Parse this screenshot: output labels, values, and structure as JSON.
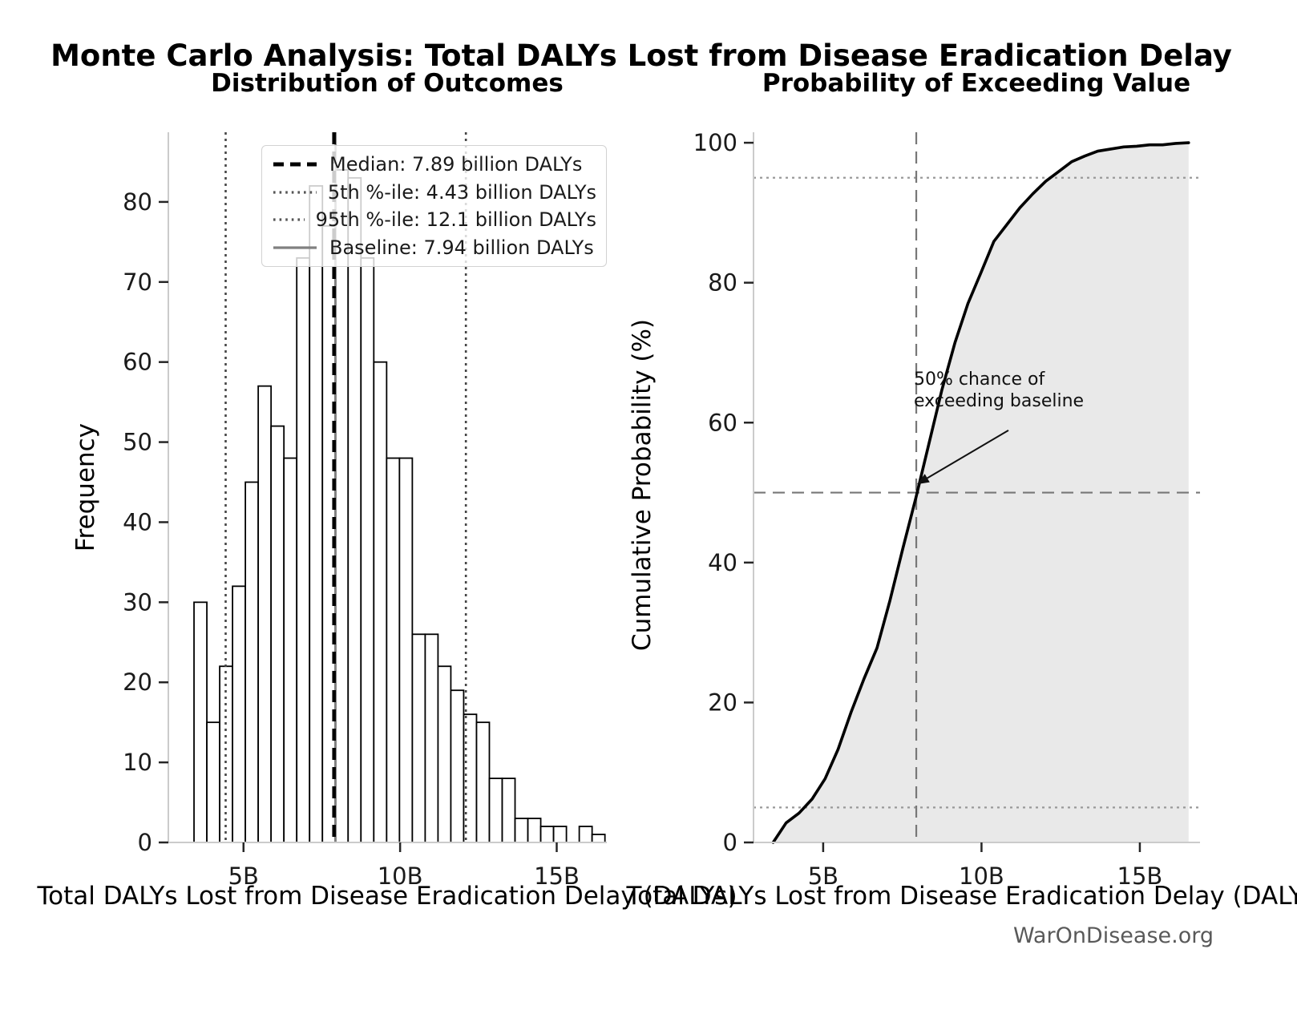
{
  "figure": {
    "title": "Monte Carlo Analysis: Total DALYs Lost from Disease Eradication Delay",
    "watermark": "WarOnDisease.org"
  },
  "chart_data": [
    {
      "type": "bar",
      "title": "Distribution of Outcomes",
      "xlabel": "Total DALYs Lost from Disease Eradication Delay (DALYs)",
      "ylabel": "Frequency",
      "xlim": [
        2.6,
        16.6
      ],
      "ylim": [
        0,
        88.7
      ],
      "grid": false,
      "xticks": {
        "values": [
          5,
          10,
          15
        ],
        "labels": [
          "5B",
          "10B",
          "15B"
        ]
      },
      "yticks": {
        "values": [
          0,
          10,
          20,
          30,
          40,
          50,
          60,
          70,
          80
        ],
        "labels": [
          "0",
          "10",
          "20",
          "30",
          "40",
          "50",
          "60",
          "70",
          "80"
        ]
      },
      "bins": {
        "start": 3.42,
        "width": 0.41,
        "unit": "billion DALYs"
      },
      "frequencies": [
        30,
        15,
        22,
        32,
        45,
        57,
        52,
        48,
        73,
        82,
        77,
        84,
        83,
        73,
        60,
        48,
        48,
        26,
        26,
        22,
        19,
        16,
        15,
        8,
        8,
        3,
        3,
        2,
        2,
        0,
        2,
        1
      ],
      "bar_fill": "#ffffff",
      "bar_edge": "#000000",
      "ref_lines": [
        {
          "name": "baseline",
          "x": 7.94,
          "style": "solid",
          "color": "#808080",
          "width": 2.6
        },
        {
          "name": "p5",
          "x": 4.43,
          "style": "dotted",
          "color": "#454545",
          "width": 2.6
        },
        {
          "name": "p95",
          "x": 12.1,
          "style": "dotted",
          "color": "#454545",
          "width": 2.6
        },
        {
          "name": "median",
          "x": 7.89,
          "style": "dashed",
          "color": "#000000",
          "width": 4.5
        }
      ],
      "legend": {
        "position": "upper-left",
        "items": [
          {
            "label": "Median: 7.89 billion DALYs",
            "style": "dashed",
            "color": "#000000"
          },
          {
            "label": "5th %-ile: 4.43 billion DALYs",
            "style": "dotted",
            "color": "#555555"
          },
          {
            "label": "95th %-ile: 12.1 billion DALYs",
            "style": "dotted",
            "color": "#555555"
          },
          {
            "label": "Baseline: 7.94 billion DALYs",
            "style": "solid",
            "color": "#808080"
          }
        ]
      },
      "stats": {
        "median": "7.89 billion DALYs",
        "p5": "4.43 billion DALYs",
        "p95": "12.1 billion DALYs",
        "baseline": "7.94 billion DALYs"
      }
    },
    {
      "type": "line",
      "title": "Probability of Exceeding Value",
      "xlabel": "Total DALYs Lost from Disease Eradication Delay (DALYs)",
      "ylabel": "Cumulative Probability (%)",
      "xlim": [
        2.8,
        16.9
      ],
      "ylim": [
        0,
        101.5
      ],
      "grid": false,
      "xticks": {
        "values": [
          5,
          10,
          15
        ],
        "labels": [
          "5B",
          "10B",
          "15B"
        ]
      },
      "yticks": {
        "values": [
          0,
          20,
          40,
          60,
          80,
          100
        ],
        "labels": [
          "0",
          "20",
          "40",
          "60",
          "80",
          "100"
        ]
      },
      "series": {
        "name": "empirical-cdf",
        "color": "#000000",
        "fill_under": true,
        "fill_color": "#e9e9e9",
        "x": [
          3.42,
          3.83,
          4.24,
          4.65,
          5.06,
          5.47,
          5.88,
          6.29,
          6.7,
          7.11,
          7.52,
          7.93,
          8.34,
          8.75,
          9.16,
          9.57,
          9.98,
          10.39,
          10.8,
          11.21,
          11.62,
          12.03,
          12.44,
          12.85,
          13.26,
          13.67,
          14.08,
          14.49,
          14.9,
          15.31,
          15.72,
          16.13,
          16.54
        ],
        "y": [
          0,
          2.8,
          4.2,
          6.2,
          9.1,
          13.3,
          18.6,
          23.4,
          27.8,
          34.6,
          42.1,
          49.3,
          57.0,
          64.7,
          71.4,
          77.0,
          81.4,
          85.9,
          88.3,
          90.7,
          92.7,
          94.5,
          95.9,
          97.3,
          98.1,
          98.8,
          99.1,
          99.4,
          99.5,
          99.7,
          99.7,
          99.9,
          100.0
        ]
      },
      "guide_lines": [
        {
          "name": "p95-level",
          "y": 95,
          "style": "dotted",
          "color": "#999999",
          "width": 2.2
        },
        {
          "name": "p5-level",
          "y": 5,
          "style": "dotted",
          "color": "#999999",
          "width": 2.2
        },
        {
          "name": "median-level",
          "y": 50,
          "style": "dashed",
          "color": "#777777",
          "width": 2.2
        },
        {
          "name": "baseline-value",
          "x": 7.94,
          "style": "dashed",
          "color": "#777777",
          "width": 2.2
        }
      ],
      "annotation": {
        "lines": [
          "50% chance of",
          "exceeding baseline"
        ],
        "arrow_from": {
          "x": 10.85,
          "y": 58.9
        },
        "arrow_to": {
          "x": 7.96,
          "y": 51.2
        }
      }
    }
  ]
}
